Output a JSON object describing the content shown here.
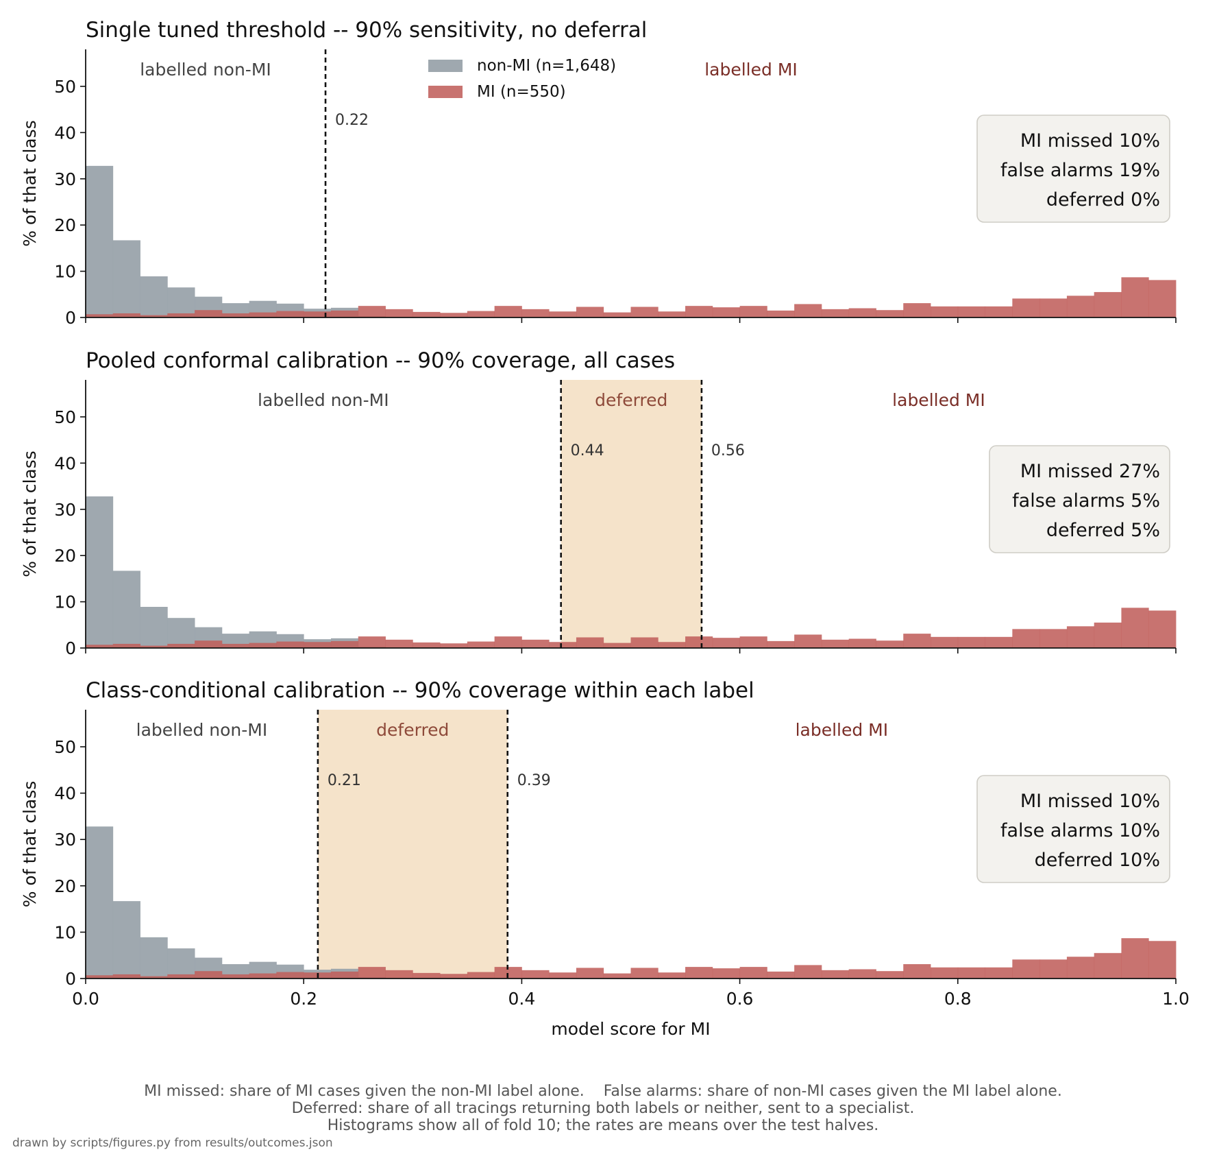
{
  "chart_data": {
    "type": "histogram",
    "xlabel": "model score for MI",
    "ylabel": "% of that class",
    "xlim": [
      0.0,
      1.0
    ],
    "ylim": [
      0,
      58
    ],
    "x_ticks": [
      "0.0",
      "0.2",
      "0.4",
      "0.6",
      "0.8",
      "1.0"
    ],
    "y_ticks": [
      "0",
      "10",
      "20",
      "30",
      "40",
      "50"
    ],
    "bins": {
      "start": 0.0,
      "end": 1.0,
      "count": 40
    },
    "colors": {
      "non_mi": "#9aa3ab",
      "mi": "#c0605c",
      "deferred_band": "#f5e3ca",
      "stats_box": "#f3f2ee",
      "mi_region_text": "#7a2e27",
      "deferred_text": "#8e4a3a"
    },
    "legend": [
      {
        "name": "non-MI (n=1,648)",
        "color": "#9aa3ab"
      },
      {
        "name": "MI (n=550)",
        "color": "#c0605c"
      }
    ],
    "series": [
      {
        "name": "non-MI (n=1,648)",
        "values": [
          32.8,
          16.7,
          8.9,
          6.5,
          4.5,
          3.1,
          3.6,
          3.0,
          1.9,
          2.1,
          0.3,
          0,
          0,
          0,
          0,
          0,
          0,
          0,
          0,
          0,
          0,
          0,
          0,
          0,
          0,
          0,
          0,
          0,
          0,
          0,
          0,
          0,
          0,
          0,
          0,
          0,
          0,
          0,
          0,
          0
        ]
      },
      {
        "name": "MI (n=550)",
        "values": [
          0.7,
          0.9,
          0.5,
          0.9,
          1.6,
          0.9,
          1.1,
          1.4,
          1.3,
          1.5,
          2.5,
          1.8,
          1.2,
          1.0,
          1.4,
          2.5,
          1.8,
          1.3,
          2.3,
          1.1,
          2.3,
          1.3,
          2.5,
          2.2,
          2.5,
          1.5,
          2.9,
          1.8,
          2.0,
          1.6,
          3.1,
          2.4,
          2.4,
          2.4,
          4.1,
          4.1,
          4.7,
          5.5,
          8.7,
          8.1
        ]
      }
    ],
    "panels": [
      {
        "title": "Single tuned threshold -- 90% sensitivity, no deferral",
        "thresholds": [
          0.22
        ],
        "threshold_labels": [
          "0.22"
        ],
        "deferred_band": null,
        "deferred_label": "",
        "region_labels": {
          "non_mi": "labelled non-MI",
          "mi": "labelled MI"
        },
        "show_legend": true,
        "stats": [
          {
            "label": "MI missed",
            "value": "10%"
          },
          {
            "label": "false alarms",
            "value": "19%"
          },
          {
            "label": "deferred",
            "value": "0%"
          }
        ]
      },
      {
        "title": "Pooled conformal calibration -- 90% coverage, all cases",
        "thresholds": [
          0.436,
          0.565
        ],
        "threshold_labels": [
          "0.44",
          "0.56"
        ],
        "deferred_band": [
          0.436,
          0.565
        ],
        "deferred_label": "deferred",
        "region_labels": {
          "non_mi": "labelled non-MI",
          "mi": "labelled MI"
        },
        "show_legend": false,
        "stats": [
          {
            "label": "MI missed",
            "value": "27%"
          },
          {
            "label": "false alarms",
            "value": "5%"
          },
          {
            "label": "deferred",
            "value": "5%"
          }
        ]
      },
      {
        "title": "Class-conditional calibration -- 90% coverage within each label",
        "thresholds": [
          0.213,
          0.387
        ],
        "threshold_labels": [
          "0.21",
          "0.39"
        ],
        "deferred_band": [
          0.213,
          0.387
        ],
        "deferred_label": "deferred",
        "region_labels": {
          "non_mi": "labelled non-MI",
          "mi": "labelled MI"
        },
        "show_legend": false,
        "stats": [
          {
            "label": "MI missed",
            "value": "10%"
          },
          {
            "label": "false alarms",
            "value": "10%"
          },
          {
            "label": "deferred",
            "value": "10%"
          }
        ]
      }
    ],
    "caption": [
      "MI missed: share of MI cases given the non-MI label alone.    False alarms: share of non-MI cases given the MI label alone.",
      "Deferred: share of all tracings returning both labels or neither, sent to a specialist.",
      "Histograms show all of fold 10; the rates are means over the test halves."
    ],
    "footer": "drawn by scripts/figures.py from results/outcomes.json"
  }
}
